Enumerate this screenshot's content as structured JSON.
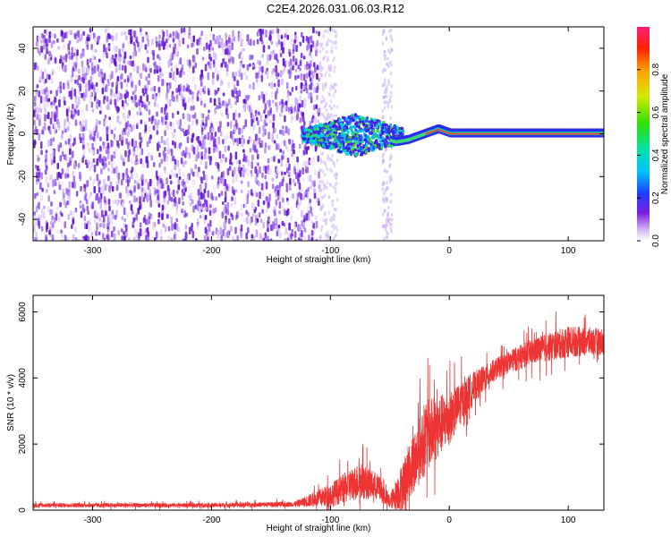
{
  "title": "C2E4.2026.031.06.03.R12",
  "chart_data": [
    {
      "type": "heatmap",
      "xlabel": "Height of straight line (km)",
      "ylabel": "Frequency (Hz)",
      "xlim": [
        -350,
        130
      ],
      "ylim": [
        -50,
        50
      ],
      "xticks": [
        -300,
        -200,
        -100,
        0,
        100
      ],
      "yticks": [
        -40,
        -20,
        0,
        20,
        40
      ],
      "colorbar": {
        "label": "Normalized spectral amplitude",
        "range": [
          0,
          1
        ],
        "ticks": [
          0.0,
          0.2,
          0.4,
          0.6,
          0.8
        ]
      },
      "features": {
        "noise_region_x": [
          -350,
          -110
        ],
        "noise_dominant_color": "#6a1bd6",
        "signal_track": [
          {
            "x": -120,
            "f": 1
          },
          {
            "x": -100,
            "f": 1
          },
          {
            "x": -80,
            "f": -1
          },
          {
            "x": -60,
            "f": -2
          },
          {
            "x": -45,
            "f": -4
          },
          {
            "x": -35,
            "f": -3
          },
          {
            "x": -25,
            "f": -1
          },
          {
            "x": -15,
            "f": 1
          },
          {
            "x": -10,
            "f": 2
          },
          {
            "x": 0,
            "f": 0
          },
          {
            "x": 50,
            "f": 0
          },
          {
            "x": 130,
            "f": 0
          }
        ]
      }
    },
    {
      "type": "line",
      "xlabel": "Height of straight line (km)",
      "ylabel": "SNR (10 * v/v)",
      "xlim": [
        -350,
        130
      ],
      "ylim": [
        0,
        6500
      ],
      "xticks": [
        -300,
        -200,
        -100,
        0,
        100
      ],
      "yticks": [
        0,
        2000,
        4000,
        6000
      ],
      "series_color": "#ee3333",
      "envelope": [
        {
          "x": -350,
          "mean": 150,
          "spread": 80
        },
        {
          "x": -200,
          "mean": 150,
          "spread": 80
        },
        {
          "x": -130,
          "mean": 180,
          "spread": 100
        },
        {
          "x": -100,
          "mean": 450,
          "spread": 450
        },
        {
          "x": -75,
          "mean": 900,
          "spread": 700
        },
        {
          "x": -60,
          "mean": 700,
          "spread": 500
        },
        {
          "x": -50,
          "mean": 250,
          "spread": 250
        },
        {
          "x": -40,
          "mean": 700,
          "spread": 900
        },
        {
          "x": -20,
          "mean": 2200,
          "spread": 1400
        },
        {
          "x": 0,
          "mean": 2800,
          "spread": 1000
        },
        {
          "x": 20,
          "mean": 3700,
          "spread": 600
        },
        {
          "x": 40,
          "mean": 4300,
          "spread": 400
        },
        {
          "x": 70,
          "mean": 4800,
          "spread": 500
        },
        {
          "x": 100,
          "mean": 5100,
          "spread": 600
        },
        {
          "x": 130,
          "mean": 5100,
          "spread": 500
        }
      ]
    }
  ]
}
